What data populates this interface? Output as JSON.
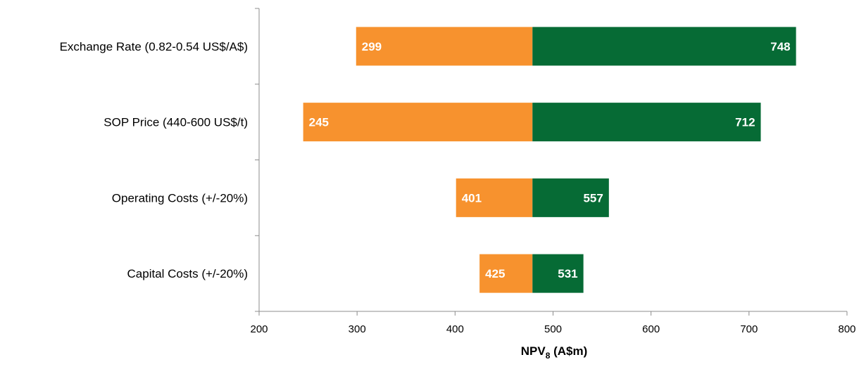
{
  "chart_data": {
    "type": "bar",
    "orientation": "horizontal",
    "style": "tornado",
    "base_value": 479,
    "categories": [
      "Exchange Rate (0.82-0.54 US$/A$)",
      "SOP Price (440-600 US$/t)",
      "Operating Costs (+/-20%)",
      "Capital Costs (+/-20%)"
    ],
    "series": [
      {
        "values": [
          299,
          245,
          401,
          425
        ],
        "color": "#F7922E"
      },
      {
        "values": [
          748,
          712,
          557,
          531
        ],
        "color": "#066B35"
      }
    ],
    "data_labels": [
      [
        "299",
        "245",
        "401",
        "425"
      ],
      [
        "748",
        "712",
        "557",
        "531"
      ]
    ],
    "xlabel": "NPV",
    "xlabel_subscript": "8",
    "xlabel_suffix": " (A$m)",
    "xlim": [
      200,
      800
    ],
    "xticks": [
      200,
      300,
      400,
      500,
      600,
      700,
      800
    ],
    "xtick_labels": [
      "200",
      "300",
      "400",
      "500",
      "600",
      "700",
      "800"
    ],
    "grid": false,
    "legend": "none"
  }
}
